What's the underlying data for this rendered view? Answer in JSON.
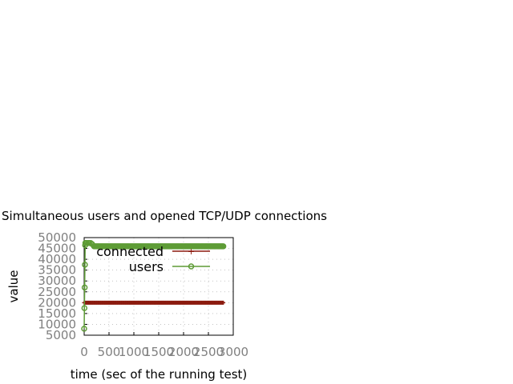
{
  "chart_data": {
    "type": "line",
    "title": "Simultaneous users and opened TCP/UDP connections",
    "xlabel": "time (sec of the running test)",
    "ylabel": "value",
    "xlim": [
      0,
      3000
    ],
    "ylim": [
      5000,
      50000
    ],
    "xticks": [
      "0",
      "500",
      "1000",
      "1500",
      "2000",
      "2500",
      "3000"
    ],
    "yticks": [
      "5000",
      "10000",
      "15000",
      "20000",
      "25000",
      "30000",
      "35000",
      "40000",
      "45000",
      "50000"
    ],
    "grid": true,
    "legend_position": "top-right",
    "colors": {
      "connected": "#8b1a0e",
      "users": "#5e9c36"
    },
    "series": [
      {
        "name": "connected",
        "x_range": [
          0,
          2800
        ],
        "value": 20000
      },
      {
        "name": "users",
        "ramp_x": [
          0,
          5,
          10,
          15,
          20,
          25,
          30,
          50,
          80,
          100,
          130,
          160,
          200
        ],
        "ramp_y": [
          8000,
          17500,
          27000,
          37500,
          46500,
          47500,
          47500,
          47500,
          47500,
          47500,
          47500,
          47000,
          46000
        ],
        "plateau_x": [
          200,
          2800
        ],
        "plateau_y": 46000
      }
    ]
  }
}
